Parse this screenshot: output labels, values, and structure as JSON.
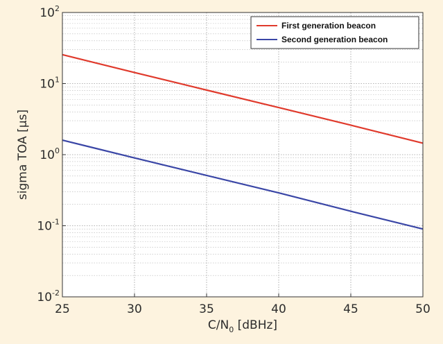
{
  "chart_data": {
    "type": "line",
    "title": "",
    "xlabel": "C/N",
    "xlabel_subscript": "0",
    "xlabel_units": " [dBHz]",
    "ylabel": "sigma TOA [µs]",
    "xlim": [
      25,
      50
    ],
    "ylim": [
      0.01,
      100
    ],
    "yscale": "log",
    "grid": true,
    "legend_position": "top-right",
    "x_ticks": [
      25,
      30,
      35,
      40,
      45,
      50
    ],
    "y_ticks": [
      {
        "base": "10",
        "exp": "-2",
        "value": 0.01
      },
      {
        "base": "10",
        "exp": "-1",
        "value": 0.1
      },
      {
        "base": "10",
        "exp": "0",
        "value": 1
      },
      {
        "base": "10",
        "exp": "1",
        "value": 10
      },
      {
        "base": "10",
        "exp": "2",
        "value": 100
      }
    ],
    "series": [
      {
        "name": "First generation beacon",
        "color": "#e03a2c",
        "x": [
          25,
          30,
          35,
          40,
          45,
          50
        ],
        "y": [
          25.5,
          14.3,
          8.1,
          4.6,
          2.6,
          1.45
        ]
      },
      {
        "name": "Second generation beacon",
        "color": "#3a46a6",
        "x": [
          25,
          30,
          35,
          40,
          45,
          50
        ],
        "y": [
          1.6,
          0.9,
          0.51,
          0.29,
          0.16,
          0.09
        ]
      }
    ]
  }
}
